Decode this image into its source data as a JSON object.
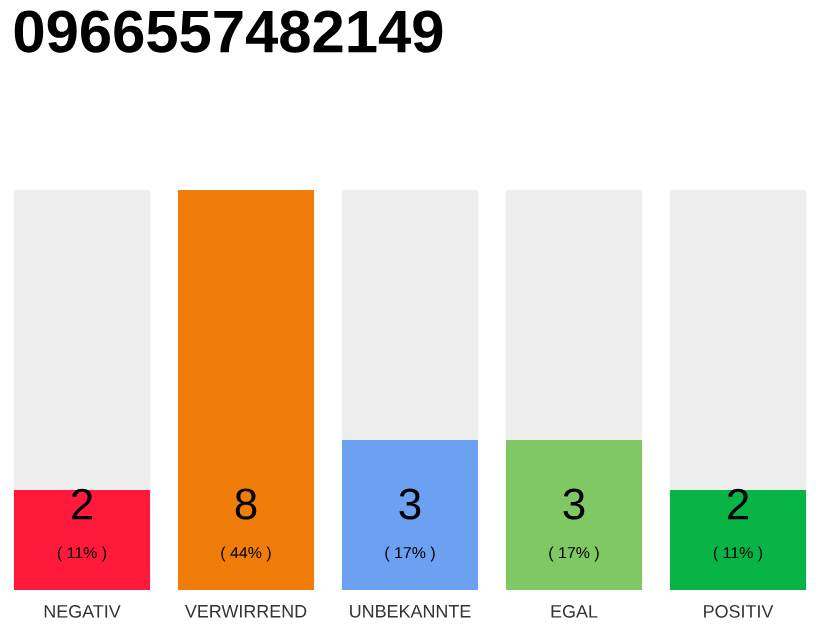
{
  "chart_data": {
    "type": "bar",
    "title": "0966557482149",
    "categories": [
      "NEGATIV",
      "VERWIRREND",
      "UNBEKANNTE",
      "EGAL",
      "POSITIV"
    ],
    "values": [
      2,
      8,
      3,
      3,
      2
    ],
    "colors": [
      "#ff1a3c",
      "#f07d0a",
      "#6ca0f0",
      "#80c864",
      "#08b446"
    ],
    "data_labels": true,
    "annotations": [
      "( 11% )",
      "( 44% )",
      "( 17% )",
      "( 17% )",
      "( 11% )"
    ]
  }
}
